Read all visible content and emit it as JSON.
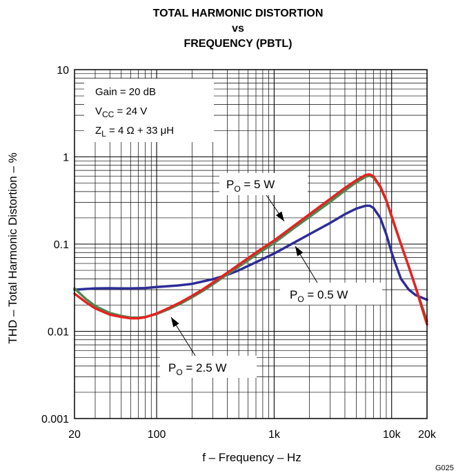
{
  "chart_data": {
    "type": "line",
    "title_lines": [
      "TOTAL HARMONIC DISTORTION",
      "vs",
      "FREQUENCY (PBTL)"
    ],
    "xlabel": "f – Frequency – Hz",
    "ylabel": "THD – Total Harmonic Distortion – %",
    "x_scale": "log",
    "y_scale": "log",
    "xlim": [
      20,
      20000
    ],
    "ylim": [
      0.001,
      10
    ],
    "grid": true,
    "x_ticks": [
      {
        "value": 20,
        "label": "20"
      },
      {
        "value": 100,
        "label": "100"
      },
      {
        "value": 1000,
        "label": "1k"
      },
      {
        "value": 10000,
        "label": "10k"
      },
      {
        "value": 20000,
        "label": "20k"
      }
    ],
    "y_ticks": [
      {
        "value": 10,
        "label": "10"
      },
      {
        "value": 1,
        "label": "1"
      },
      {
        "value": 0.1,
        "label": "0.1"
      },
      {
        "value": 0.01,
        "label": "0.01"
      },
      {
        "value": 0.001,
        "label": "0.001"
      }
    ],
    "conditions": {
      "gain": "Gain = 20 dB",
      "vcc_main": "V",
      "vcc_sub": "CC",
      "vcc_rest": " = 24 V",
      "zl_main": "Z",
      "zl_sub": "L",
      "zl_rest": " = 4 Ω + 33 μH"
    },
    "series": [
      {
        "name": "P_O = 5 W",
        "label_main": "P",
        "label_sub": "O",
        "label_rest": " = 5 W",
        "color": "#e8211f",
        "points": [
          [
            20,
            0.027
          ],
          [
            25,
            0.0215
          ],
          [
            30,
            0.0183
          ],
          [
            40,
            0.0155
          ],
          [
            50,
            0.0146
          ],
          [
            60,
            0.0141
          ],
          [
            70,
            0.0141
          ],
          [
            80,
            0.0145
          ],
          [
            100,
            0.016
          ],
          [
            130,
            0.0188
          ],
          [
            160,
            0.0215
          ],
          [
            200,
            0.0255
          ],
          [
            250,
            0.0305
          ],
          [
            300,
            0.036
          ],
          [
            400,
            0.047
          ],
          [
            500,
            0.058
          ],
          [
            700,
            0.08
          ],
          [
            1000,
            0.11
          ],
          [
            1500,
            0.165
          ],
          [
            2000,
            0.22
          ],
          [
            3000,
            0.33
          ],
          [
            4000,
            0.44
          ],
          [
            5000,
            0.54
          ],
          [
            6000,
            0.62
          ],
          [
            6500,
            0.63
          ],
          [
            7000,
            0.6
          ],
          [
            8000,
            0.46
          ],
          [
            9000,
            0.32
          ],
          [
            10000,
            0.21
          ],
          [
            12000,
            0.1
          ],
          [
            14000,
            0.055
          ],
          [
            16000,
            0.032
          ],
          [
            18000,
            0.019
          ],
          [
            20000,
            0.012
          ]
        ]
      },
      {
        "name": "P_O = 2.5 W",
        "label_main": "P",
        "label_sub": "O",
        "label_rest": " = 2.5 W",
        "color": "#4a8a52",
        "points": [
          [
            20,
            0.031
          ],
          [
            25,
            0.0235
          ],
          [
            30,
            0.0195
          ],
          [
            40,
            0.0162
          ],
          [
            50,
            0.015
          ],
          [
            60,
            0.0144
          ],
          [
            70,
            0.0143
          ],
          [
            80,
            0.0146
          ],
          [
            100,
            0.0158
          ],
          [
            130,
            0.0182
          ],
          [
            160,
            0.0208
          ],
          [
            200,
            0.0245
          ],
          [
            250,
            0.0293
          ],
          [
            300,
            0.0345
          ],
          [
            400,
            0.045
          ],
          [
            500,
            0.055
          ],
          [
            700,
            0.075
          ],
          [
            1000,
            0.103
          ],
          [
            1500,
            0.155
          ],
          [
            2000,
            0.205
          ],
          [
            3000,
            0.305
          ],
          [
            4000,
            0.41
          ],
          [
            5000,
            0.51
          ],
          [
            6000,
            0.59
          ],
          [
            6500,
            0.61
          ],
          [
            7000,
            0.58
          ],
          [
            8000,
            0.45
          ],
          [
            9000,
            0.315
          ],
          [
            10000,
            0.205
          ],
          [
            12000,
            0.1
          ],
          [
            14000,
            0.055
          ],
          [
            16000,
            0.032
          ],
          [
            18000,
            0.02
          ],
          [
            20000,
            0.013
          ]
        ]
      },
      {
        "name": "P_O = 0.5 W",
        "label_main": "P",
        "label_sub": "O",
        "label_rest": " = 0.5 W",
        "color": "#2d2c96",
        "points": [
          [
            20,
            0.03
          ],
          [
            30,
            0.031
          ],
          [
            40,
            0.0312
          ],
          [
            50,
            0.031
          ],
          [
            60,
            0.031
          ],
          [
            80,
            0.0313
          ],
          [
            100,
            0.0322
          ],
          [
            150,
            0.0335
          ],
          [
            200,
            0.035
          ],
          [
            300,
            0.0395
          ],
          [
            400,
            0.0445
          ],
          [
            500,
            0.05
          ],
          [
            700,
            0.062
          ],
          [
            1000,
            0.078
          ],
          [
            1500,
            0.105
          ],
          [
            2000,
            0.13
          ],
          [
            3000,
            0.175
          ],
          [
            4000,
            0.22
          ],
          [
            5000,
            0.255
          ],
          [
            6000,
            0.275
          ],
          [
            6500,
            0.275
          ],
          [
            7000,
            0.26
          ],
          [
            8000,
            0.2
          ],
          [
            9000,
            0.13
          ],
          [
            10000,
            0.08
          ],
          [
            11000,
            0.055
          ],
          [
            12000,
            0.04
          ],
          [
            14000,
            0.03
          ],
          [
            16000,
            0.026
          ],
          [
            20000,
            0.023
          ]
        ]
      }
    ],
    "figure_code": "G025"
  }
}
